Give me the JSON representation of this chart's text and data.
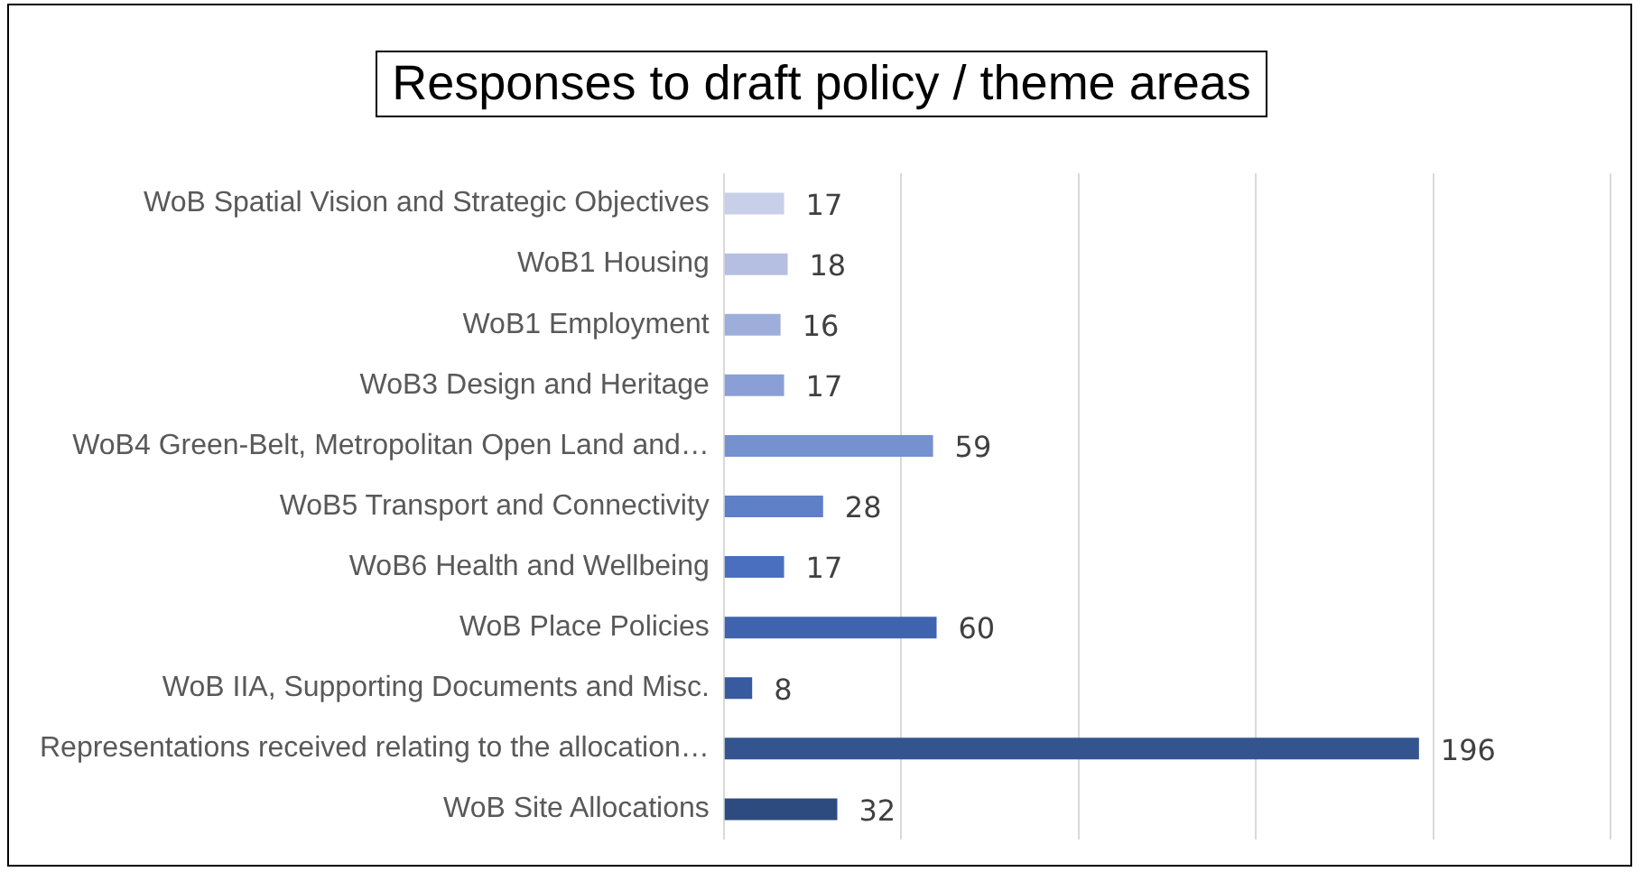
{
  "chart_data": {
    "type": "bar",
    "orientation": "horizontal",
    "title": "Responses to draft policy / theme areas",
    "categories": [
      "WoB Spatial Vision and Strategic Objectives",
      "WoB1 Housing",
      "WoB1 Employment",
      "WoB3 Design and Heritage",
      "WoB4 Green-Belt, Metropolitan Open Land and…",
      "WoB5 Transport and Connectivity",
      "WoB6 Health and Wellbeing",
      "WoB Place Policies",
      "WoB IIA, Supporting Documents and Misc.",
      "Representations received relating to the allocation…",
      "WoB Site Allocations"
    ],
    "values": [
      17,
      18,
      16,
      17,
      59,
      28,
      17,
      60,
      8,
      196,
      32
    ],
    "colors": [
      "#c8cfe8",
      "#b4bfe2",
      "#9eaedb",
      "#8a9fd6",
      "#7591d0",
      "#5f7fc7",
      "#4a6fbf",
      "#3f63ae",
      "#385a9f",
      "#33548f",
      "#2e4b80"
    ],
    "xlim": [
      0,
      250
    ],
    "xticks": [
      {
        "value": 0,
        "label": null
      },
      {
        "value": 50,
        "label": null
      },
      {
        "value": 100,
        "label": null
      },
      {
        "value": 150,
        "label": null
      },
      {
        "value": 200,
        "label": null
      },
      {
        "value": 250,
        "label": null
      }
    ],
    "grid": "x",
    "tick_labels": "y",
    "data_labels": true,
    "legend": false
  }
}
